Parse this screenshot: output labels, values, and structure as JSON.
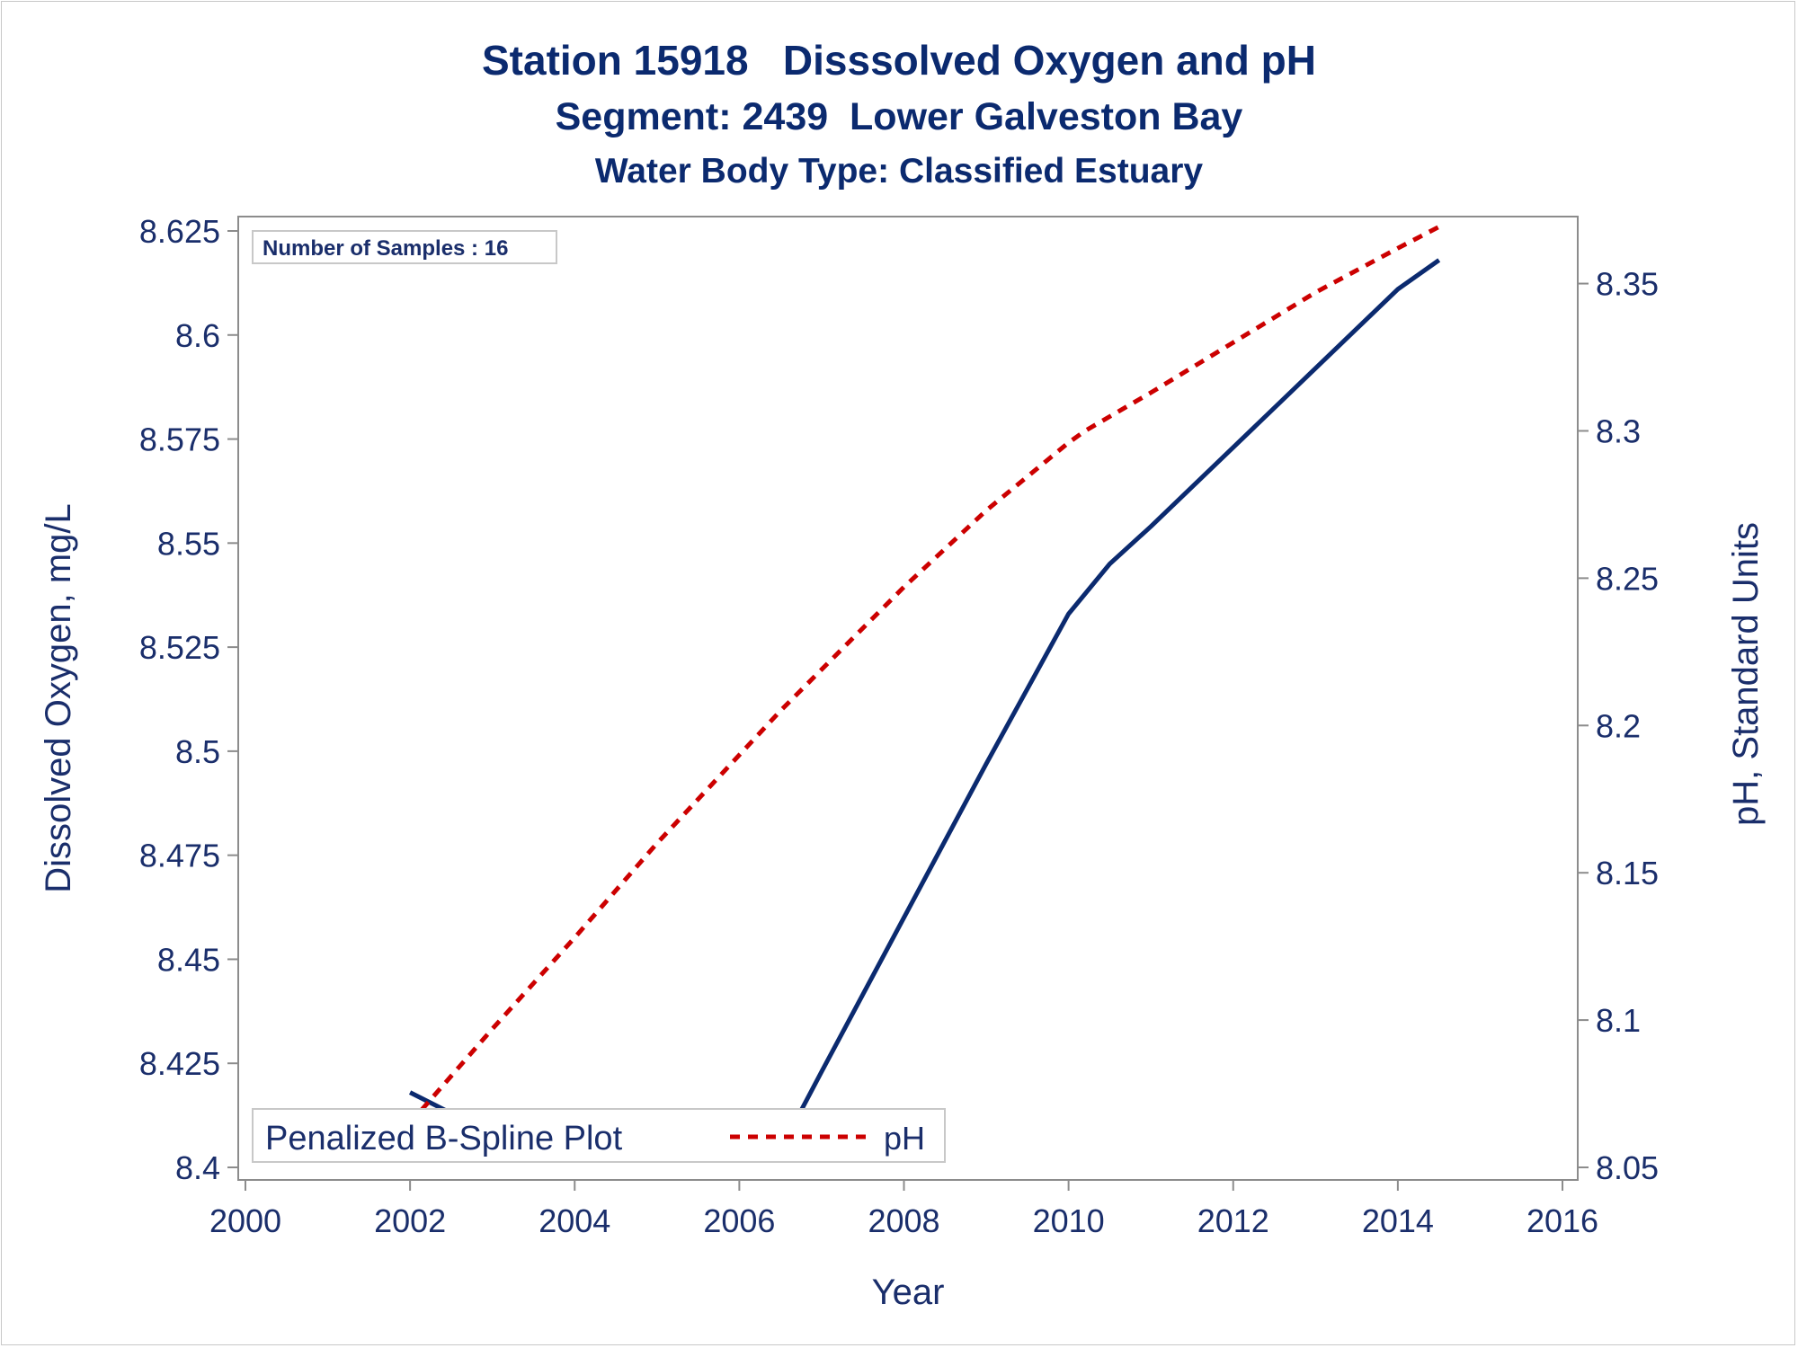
{
  "colors": {
    "title": "#0B2A6F",
    "text": "#1A2E6B",
    "do_line": "#0B2A6F",
    "ph_line": "#CC0000",
    "axis": "#8C8C8C"
  },
  "chart_data": {
    "type": "line",
    "title": "Station 15918   Disssolved Oxygen and pH",
    "subtitle": "Segment: 2439  Lower Galveston Bay",
    "subtitle2": "Water Body Type: Classified Estuary",
    "xlabel": "Year",
    "ylabel": "Dissolved Oxygen, mg/L",
    "y2label": "pH, Standard Units",
    "xlim": [
      2000,
      2016
    ],
    "ylim": [
      8.4,
      8.625
    ],
    "y2lim": [
      8.05,
      8.37
    ],
    "x_ticks": [
      "2000",
      "2002",
      "2004",
      "2006",
      "2008",
      "2010",
      "2012",
      "2014",
      "2016"
    ],
    "y_ticks": [
      "8.4",
      "8.425",
      "8.45",
      "8.475",
      "8.5",
      "8.525",
      "8.55",
      "8.575",
      "8.6",
      "8.625"
    ],
    "y2_ticks": [
      "8.05",
      "8.1",
      "8.15",
      "8.2",
      "8.25",
      "8.3",
      "8.35"
    ],
    "inset_text": "Number of Samples : 16",
    "legend_position": "bottom-left",
    "series": [
      {
        "name": "Penalized B-Spline Plot",
        "axis": "left",
        "style": "solid",
        "x": [
          2002.0,
          2002.3,
          2002.7,
          2003.5,
          2004.5,
          2005.5,
          2006.3,
          2006.6,
          2007.0,
          2008.0,
          2009.0,
          2010.0,
          2010.5,
          2011.0,
          2012.0,
          2013.0,
          2014.0,
          2014.5
        ],
        "y": [
          8.418,
          8.415,
          8.411,
          8.41,
          8.409,
          8.408,
          8.407,
          8.408,
          8.423,
          8.46,
          8.497,
          8.533,
          8.545,
          8.554,
          8.573,
          8.592,
          8.611,
          8.618
        ]
      },
      {
        "name": "pH",
        "axis": "right",
        "style": "dashed",
        "x": [
          2002.0,
          2003.0,
          2004.0,
          2005.0,
          2006.0,
          2006.5,
          2007.0,
          2008.0,
          2009.0,
          2010.0,
          2010.2,
          2011.0,
          2012.0,
          2013.0,
          2014.0,
          2014.55
        ],
        "y": [
          8.065,
          8.097,
          8.128,
          8.16,
          8.19,
          8.205,
          8.219,
          8.247,
          8.273,
          8.296,
          8.3,
          8.313,
          8.33,
          8.347,
          8.362,
          8.37
        ]
      }
    ]
  }
}
